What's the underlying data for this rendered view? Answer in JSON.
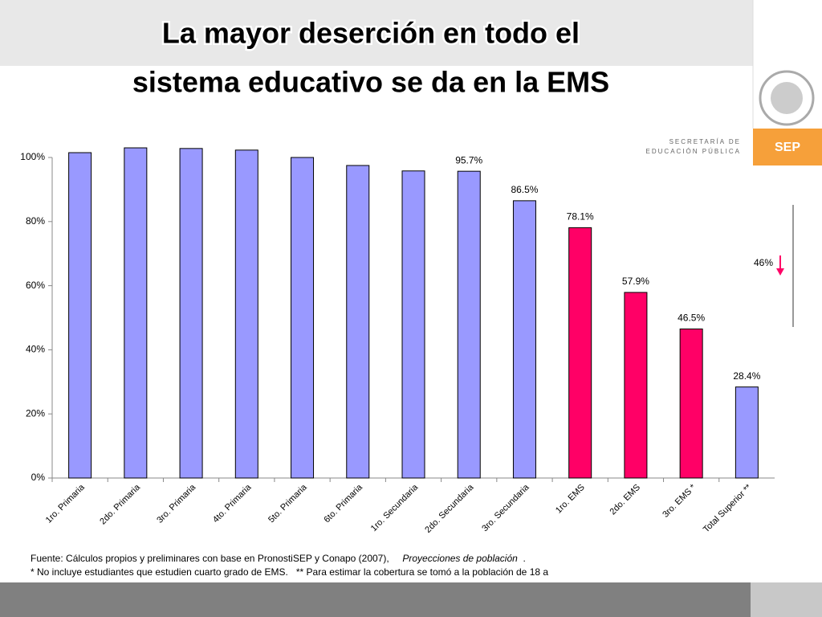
{
  "chart_data": {
    "type": "bar",
    "title": [
      "La mayor deserción en todo el",
      "sistema educativo se da en la EMS"
    ],
    "categories": [
      "1ro. Primaria",
      "2do. Primaria",
      "3ro. Primaria",
      "4to. Primaria",
      "5to. Primaria",
      "6to. Primaria",
      "1ro. Secundaria",
      "2do. Secundaria",
      "3ro. Secundaria",
      "1ro. EMS",
      "2do. EMS",
      "3ro. EMS *",
      "Total Superior **"
    ],
    "values": [
      101.5,
      103,
      102.8,
      102.3,
      100,
      97.5,
      95.8,
      95.7,
      86.5,
      78.1,
      57.9,
      46.5,
      28.4
    ],
    "value_labels": [
      null,
      null,
      null,
      null,
      null,
      null,
      null,
      "95.7%",
      "86.5%",
      "78.1%",
      "57.9%",
      "46.5%",
      "28.4%"
    ],
    "colors": [
      "#9999ff",
      "#9999ff",
      "#9999ff",
      "#9999ff",
      "#9999ff",
      "#9999ff",
      "#9999ff",
      "#9999ff",
      "#9999ff",
      "#ff0066",
      "#ff0066",
      "#ff0066",
      "#9999ff"
    ],
    "ylim": [
      0,
      100
    ],
    "yticks": [
      {
        "value": 0,
        "label": "0%"
      },
      {
        "value": 20,
        "label": "20%"
      },
      {
        "value": 40,
        "label": "40%"
      },
      {
        "value": 60,
        "label": "60%"
      },
      {
        "value": 80,
        "label": "80%"
      },
      {
        "value": 100,
        "label": "100%"
      }
    ],
    "grid": false,
    "annotation": "46%",
    "footnotes": [
      [
        "Fuente: Cálculos propios y preliminares con base en PronostiSEP y Conapo (2007),",
        "Proyecciones de población",
        "."
      ],
      "* No incluye estudiantes que estudien cuarto grado de EMS.   ** Para estimar la cobertura se tomó a la población de 18 a"
    ]
  },
  "logo": {
    "line1": "SECRETARÍA DE",
    "line2": "EDUCACIÓN PÚBLICA",
    "badge": "SEP"
  }
}
